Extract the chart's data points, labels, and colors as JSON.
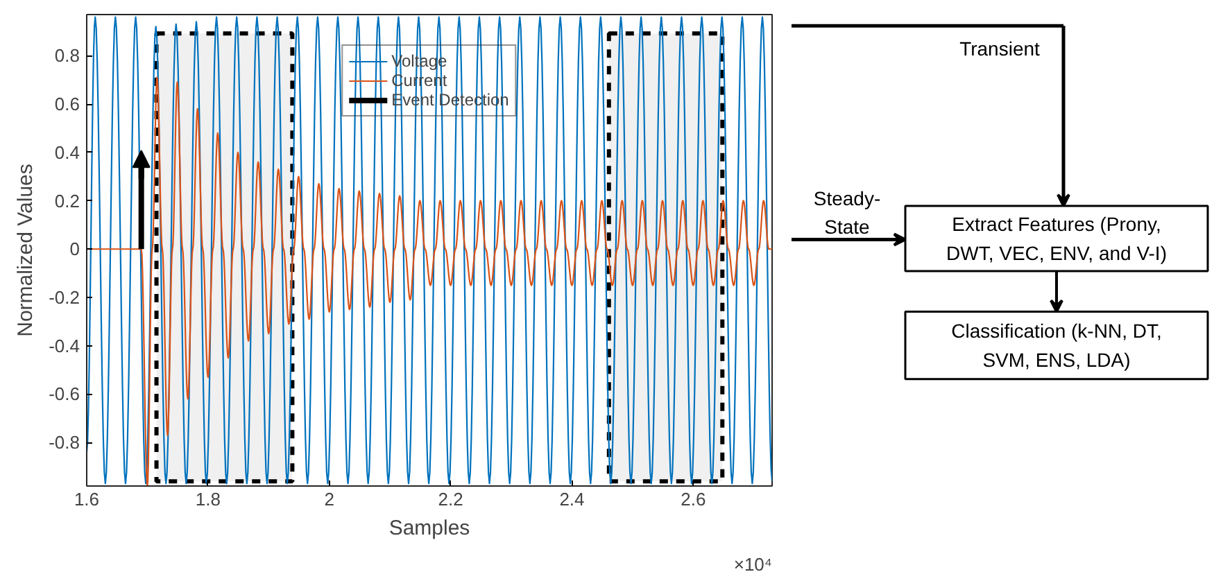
{
  "chart_data": {
    "type": "line",
    "xlabel": "Samples",
    "ylabel": "Normalized Values",
    "xlim": [
      1.6,
      2.73
    ],
    "ylim": [
      -0.98,
      0.97
    ],
    "xticks": [
      1.6,
      1.8,
      2,
      2.2,
      2.4,
      2.6
    ],
    "yticks": [
      -0.8,
      -0.6,
      -0.4,
      -0.2,
      0,
      0.2,
      0.4,
      0.6,
      0.8
    ],
    "grid": false,
    "legend": "top",
    "marker": "none",
    "line_style": "solid",
    "series": [
      {
        "name": "Voltage",
        "color": "#0072bd",
        "x": [
          1.6,
          1.614,
          1.6307,
          1.6473,
          1.664,
          1.6807,
          1.6973,
          1.714,
          1.7307,
          1.7473,
          1.764,
          1.7807,
          1.7973,
          1.814,
          1.8307,
          1.8473,
          1.864,
          1.8807,
          1.8973,
          1.914,
          1.9307,
          1.9473,
          1.964,
          1.9807,
          1.9973,
          2.014,
          2.0307,
          2.0473,
          2.064,
          2.0807,
          2.0973,
          2.114,
          2.1307,
          2.1473,
          2.164,
          2.1807,
          2.1973,
          2.214,
          2.2307,
          2.2473,
          2.264,
          2.2807,
          2.2973,
          2.314,
          2.3307,
          2.3473,
          2.364,
          2.3807,
          2.3973,
          2.414,
          2.4307,
          2.4473,
          2.464,
          2.4807,
          2.4973,
          2.514,
          2.5307,
          2.5473,
          2.564,
          2.5807,
          2.5973,
          2.614,
          2.6307,
          2.6473,
          2.664,
          2.6807,
          2.6973,
          2.714,
          2.73
        ],
        "values": [
          -0.84,
          0.96,
          -0.97,
          0.96,
          -0.97,
          0.96,
          -0.97,
          0.92,
          -0.97,
          0.93,
          -0.97,
          0.94,
          -0.97,
          0.96,
          -0.97,
          0.96,
          -0.97,
          0.96,
          -0.97,
          0.96,
          -0.97,
          0.96,
          -0.97,
          0.96,
          -0.97,
          0.96,
          -0.97,
          0.96,
          -0.97,
          0.96,
          -0.97,
          0.96,
          -0.97,
          0.96,
          -0.97,
          0.96,
          -0.97,
          0.96,
          -0.97,
          0.96,
          -0.97,
          0.96,
          -0.97,
          0.96,
          -0.97,
          0.96,
          -0.97,
          0.96,
          -0.97,
          0.96,
          -0.97,
          0.96,
          -0.97,
          0.96,
          -0.97,
          0.96,
          -0.97,
          0.96,
          -0.97,
          0.96,
          -0.97,
          0.96,
          -0.97,
          0.96,
          -0.97,
          0.96,
          -0.97,
          0.96,
          -0.96
        ]
      },
      {
        "name": "Current",
        "color": "#d95319",
        "x": [
          1.6,
          1.69,
          1.7,
          1.708,
          1.716,
          1.7246,
          1.7333,
          1.7413,
          1.7493,
          1.7579,
          1.7667,
          1.7747,
          1.7827,
          1.7913,
          1.8,
          1.808,
          1.816,
          1.8246,
          1.8333,
          1.8413,
          1.8493,
          1.8579,
          1.8667,
          1.8747,
          1.8827,
          1.8913,
          1.9,
          1.908,
          1.916,
          1.9246,
          1.9333,
          1.9413,
          1.9493,
          1.9579,
          1.9667,
          1.9747,
          1.9827,
          1.9913,
          2.0,
          2.008,
          2.016,
          2.0246,
          2.0333,
          2.0413,
          2.0493,
          2.0579,
          2.0667,
          2.0747,
          2.0827,
          2.0913,
          2.1,
          2.108,
          2.116,
          2.1246,
          2.1333,
          2.1413,
          2.1493,
          2.1579,
          2.1667,
          2.1747,
          2.1827,
          2.1913,
          2.2,
          2.208,
          2.216,
          2.2246,
          2.2333,
          2.2413,
          2.2493,
          2.2579,
          2.2667,
          2.2747,
          2.2827,
          2.2913,
          2.3,
          2.308,
          2.316,
          2.3246,
          2.3333,
          2.3413,
          2.3493,
          2.3579,
          2.3667,
          2.3747,
          2.3827,
          2.3913,
          2.4,
          2.408,
          2.416,
          2.4246,
          2.4333,
          2.4413,
          2.4493,
          2.4579,
          2.4667,
          2.4747,
          2.4827,
          2.4913,
          2.5,
          2.508,
          2.516,
          2.5246,
          2.5333,
          2.5413,
          2.5493,
          2.5579,
          2.5667,
          2.5747,
          2.5827,
          2.5913,
          2.6,
          2.608,
          2.616,
          2.6246,
          2.6333,
          2.6413,
          2.6493,
          2.6579,
          2.6667,
          2.6747,
          2.6827,
          2.6913,
          2.7,
          2.708,
          2.716,
          2.7246,
          2.73
        ],
        "values": [
          0,
          0,
          -0.98,
          0,
          0.71,
          0,
          -0.77,
          0,
          0.69,
          0,
          -0.62,
          0,
          0.58,
          0,
          -0.53,
          0,
          0.48,
          0,
          -0.45,
          0,
          0.4,
          0,
          -0.38,
          0,
          0.36,
          0,
          -0.35,
          0,
          0.33,
          0,
          -0.31,
          0,
          0.3,
          0,
          -0.29,
          0,
          0.27,
          0,
          -0.26,
          0,
          0.25,
          0,
          -0.25,
          0,
          0.24,
          0,
          -0.24,
          0,
          0.23,
          0,
          -0.22,
          0,
          0.22,
          0,
          -0.21,
          0,
          0.2,
          0,
          -0.15,
          0,
          0.2,
          0,
          -0.15,
          0,
          0.2,
          0,
          -0.15,
          0,
          0.2,
          0,
          -0.15,
          0,
          0.2,
          0,
          -0.15,
          0,
          0.2,
          0,
          -0.15,
          0,
          0.2,
          0,
          -0.15,
          0,
          0.2,
          0,
          -0.15,
          0,
          0.2,
          0,
          -0.15,
          0,
          0.2,
          0,
          -0.15,
          0,
          0.2,
          0,
          -0.15,
          0,
          0.2,
          0,
          -0.15,
          0,
          0.2,
          0,
          -0.15,
          0,
          0.2,
          0,
          -0.15,
          0,
          0.2,
          0,
          -0.15,
          0,
          0.2,
          0,
          -0.15,
          0,
          0.2,
          0,
          -0.15,
          0,
          0.2,
          0,
          0
        ]
      }
    ],
    "bands": [
      {
        "axis": "x",
        "from": 1.715,
        "to": 1.939,
        "color": "#000000"
      },
      {
        "axis": "x",
        "from": 2.461,
        "to": 2.648,
        "color": "#000000"
      }
    ],
    "ref_lines": [
      {
        "axis": "x",
        "value": 1.69,
        "label": "Event Detection",
        "color": "#000000"
      }
    ],
    "annotations": [
      "×10⁴",
      "Extract Features (Prony, DWT, VEC, ENV, and V-I)",
      "Classification (k-NN, DT, SVM, ENS, LDA)",
      "Transient",
      "Steady-State"
    ]
  }
}
